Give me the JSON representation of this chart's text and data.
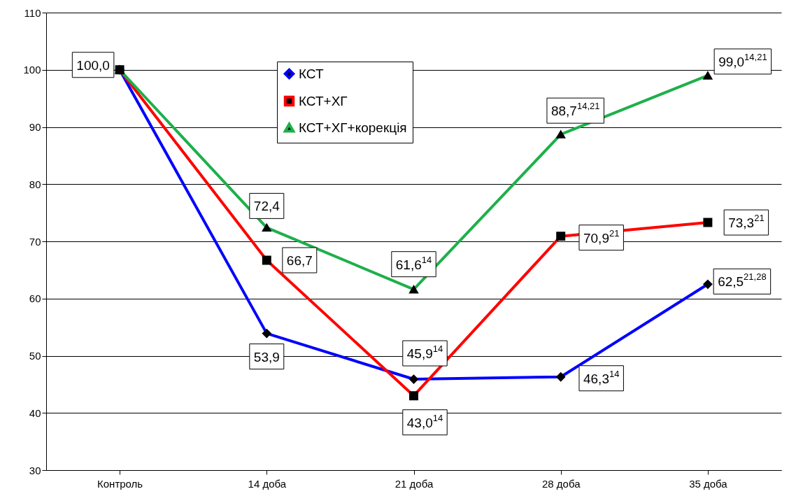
{
  "chart_data": {
    "type": "line",
    "categories": [
      "Контроль",
      "14 доба",
      "21 доба",
      "28 доба",
      "35 доба"
    ],
    "ylim": [
      30,
      110
    ],
    "yticks": [
      30,
      40,
      50,
      60,
      70,
      80,
      90,
      100,
      110
    ],
    "grid": "y",
    "legend": "top",
    "line_style": "solid",
    "series": [
      {
        "name": "КСТ",
        "color": "#0000ff",
        "marker": "diamond",
        "values": [
          100,
          53.9,
          45.9,
          46.3,
          62.5
        ],
        "value_labels": [
          null,
          "53,9",
          "45,9$^{14}$",
          "46,3$^{14}$",
          "62,5$^{21,28}$"
        ]
      },
      {
        "name": "КСТ+ХГ",
        "color": "#ff0000",
        "marker": "square",
        "values": [
          100,
          66.7,
          43.0,
          70.9,
          73.3
        ],
        "value_labels": [
          null,
          "66,7",
          "43,0$^{14}$",
          "70,9$^{21}$",
          "73,3$^{21}$"
        ]
      },
      {
        "name": "КСТ+ХГ+корекція",
        "color": "#1db04a",
        "marker": "triangle",
        "values": [
          100,
          72.4,
          61.6,
          88.7,
          99.0
        ],
        "value_labels": [
          "100,0",
          "72,4",
          "61,6$^{14}$",
          "88,7$^{14,21}$",
          "99,0$^{14,21}$"
        ]
      }
    ]
  }
}
